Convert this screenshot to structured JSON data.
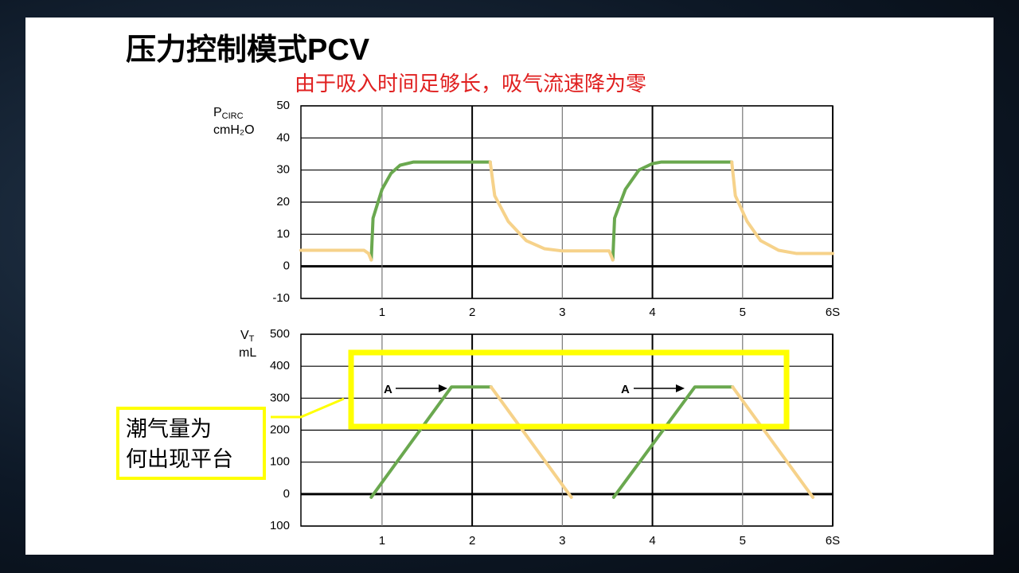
{
  "slide": {
    "title": "压力控制模式PCV",
    "subtitle": "由于吸入时间足够长，吸气流速降为零",
    "callout": [
      "潮气量为",
      "何出现平台"
    ]
  },
  "chart_data": [
    {
      "type": "line",
      "ylabel": {
        "main": "P",
        "sub": "CIRC",
        "unit": "cmH₂O"
      },
      "x": [
        0.1,
        0.8,
        0.85,
        0.88,
        0.9,
        1.0,
        1.1,
        1.2,
        1.35,
        2.2,
        2.25,
        2.4,
        2.6,
        2.8,
        3.0,
        3.52,
        3.56,
        3.58,
        3.7,
        3.85,
        4.0,
        4.1,
        4.88,
        4.92,
        5.05,
        5.2,
        5.4,
        5.6,
        6.0
      ],
      "series": [
        {
          "color": "#6aa84f",
          "values": [
            null,
            null,
            null,
            2,
            15,
            24,
            29,
            31.5,
            32.5,
            32.5,
            null,
            null,
            null,
            null,
            null,
            null,
            2,
            15,
            24,
            30,
            32,
            32.5,
            32.5,
            null,
            null,
            null,
            null,
            null,
            null
          ]
        },
        {
          "color": "#f6d28a",
          "values": [
            5,
            5,
            4,
            2,
            null,
            null,
            null,
            null,
            null,
            32.5,
            22,
            14,
            8,
            5.5,
            4.8,
            4.8,
            2,
            null,
            null,
            null,
            null,
            null,
            32.5,
            22,
            14,
            8,
            5,
            4,
            4
          ]
        }
      ],
      "xlim": [
        0.1,
        6
      ],
      "xticks": [
        1,
        2,
        3,
        4,
        5,
        {
          "value": 6,
          "label": "6S"
        }
      ],
      "ylim": [
        -10,
        50
      ],
      "yticks": [
        50,
        40,
        30,
        20,
        10,
        0,
        -10
      ],
      "grid": true
    },
    {
      "type": "line",
      "ylabel": {
        "main": "V",
        "sub": "T",
        "unit": "mL"
      },
      "x": [
        0.88,
        1.77,
        2.21,
        3.1,
        3.57,
        4.47,
        4.89,
        5.78
      ],
      "series": [
        {
          "color": "#6aa84f",
          "values": [
            -10,
            335,
            335,
            null,
            -10,
            335,
            335,
            null
          ]
        },
        {
          "color": "#f6d28a",
          "values": [
            null,
            null,
            335,
            -10,
            null,
            null,
            335,
            -10
          ]
        }
      ],
      "annotations": [
        "A",
        "A"
      ],
      "xlim": [
        0.1,
        6
      ],
      "xticks": [
        1,
        2,
        3,
        4,
        5,
        {
          "value": 6,
          "label": "6S"
        }
      ],
      "ylim": [
        -100,
        500
      ],
      "yticks": [
        500,
        400,
        300,
        200,
        100,
        0,
        {
          "value": -100,
          "label": "100"
        }
      ],
      "grid": true
    }
  ]
}
